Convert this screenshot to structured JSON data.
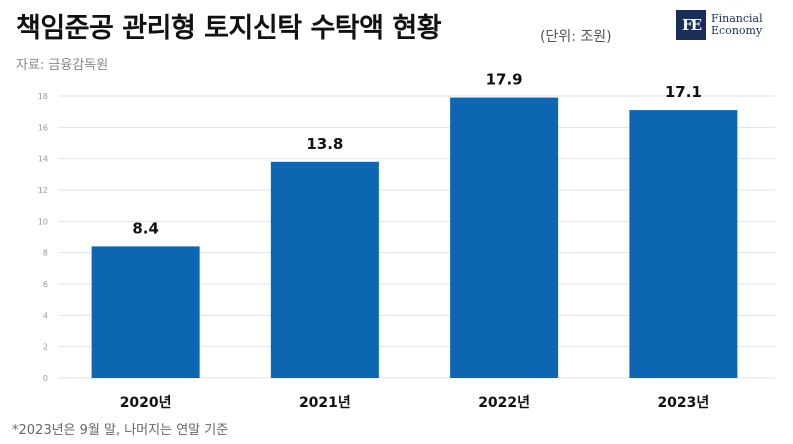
{
  "header": {
    "title": "책임준공 관리형 토지신탁 수탁액 현황",
    "unit": "(단위: 조원)",
    "source": "자료: 금융감독원"
  },
  "logo": {
    "mark": "FE",
    "line1": "Financial",
    "line2": "Economy"
  },
  "footnote": "*2023년은 9월 말, 나머지는 연말 기준",
  "colors": {
    "bar": "#0d66b1",
    "grid": "#e3e3e3",
    "axis_text": "#999999",
    "label_text": "#111111"
  },
  "chart_data": {
    "type": "bar",
    "categories": [
      "2020년",
      "2021년",
      "2022년",
      "2023년"
    ],
    "values": [
      8.4,
      13.8,
      17.9,
      17.1
    ],
    "value_labels": [
      "8.4",
      "13.8",
      "17.9",
      "17.1"
    ],
    "yticks": [
      0,
      2,
      4,
      6,
      8,
      10,
      12,
      14,
      16,
      18
    ],
    "ylim": [
      0,
      18
    ],
    "grid": true
  }
}
